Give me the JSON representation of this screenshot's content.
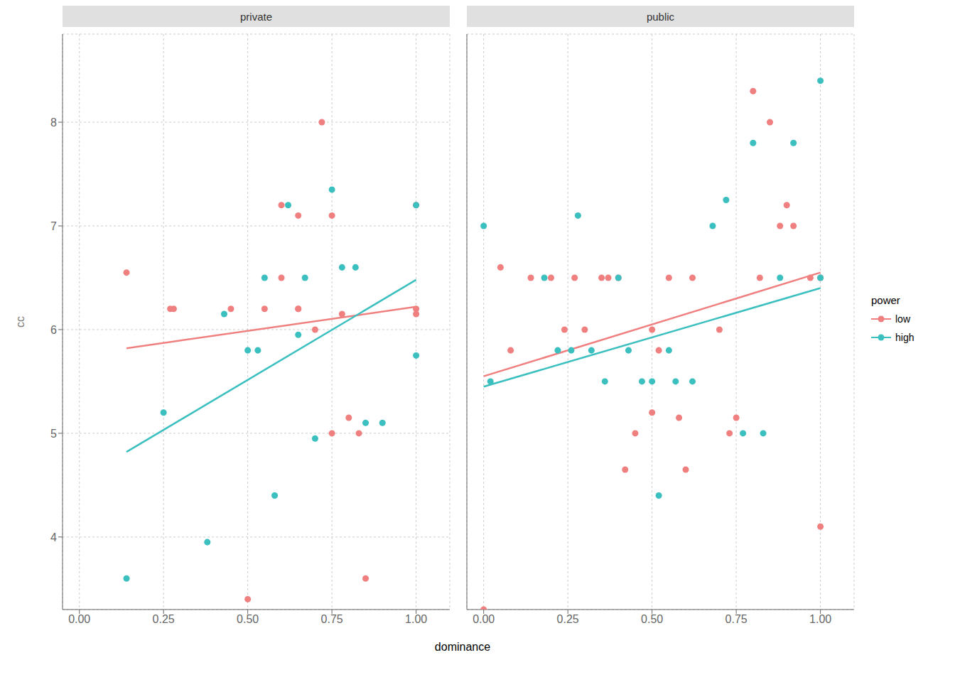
{
  "chart_data": [
    {
      "type": "scatter",
      "title": "private",
      "xlabel": "dominance",
      "ylabel": "cc",
      "xlim": [
        -0.05,
        1.1
      ],
      "ylim": [
        3.3,
        8.85
      ],
      "xticks": [
        {
          "value": 0.0,
          "label": "0.00"
        },
        {
          "value": 0.25,
          "label": "0.25"
        },
        {
          "value": 0.5,
          "label": "0.50"
        },
        {
          "value": 0.75,
          "label": "0.75"
        },
        {
          "value": 1.0,
          "label": "1.00"
        }
      ],
      "yticks": [
        4,
        5,
        6,
        7,
        8
      ],
      "grid": true,
      "series": [
        {
          "name": "low",
          "color": "#F08080",
          "x": [
            0.14,
            0.27,
            0.28,
            0.45,
            0.5,
            0.55,
            0.6,
            0.6,
            0.65,
            0.65,
            0.65,
            0.7,
            0.72,
            0.75,
            0.75,
            0.78,
            0.8,
            0.83,
            0.85,
            1.0,
            1.0,
            1.0
          ],
          "values": [
            6.55,
            6.2,
            6.2,
            6.2,
            3.4,
            6.2,
            7.2,
            6.5,
            6.2,
            6.2,
            7.1,
            6.0,
            8.0,
            7.1,
            5.0,
            6.15,
            5.15,
            5.0,
            3.6,
            7.2,
            6.2,
            6.15
          ],
          "fit": {
            "x": [
              0.14,
              1.0
            ],
            "values": [
              5.82,
              6.22
            ]
          }
        },
        {
          "name": "high",
          "color": "#3BBFBF",
          "x": [
            0.14,
            0.25,
            0.38,
            0.43,
            0.5,
            0.53,
            0.55,
            0.58,
            0.62,
            0.65,
            0.67,
            0.7,
            0.75,
            0.78,
            0.82,
            0.85,
            0.9,
            1.0,
            1.0
          ],
          "values": [
            3.6,
            5.2,
            3.95,
            6.15,
            5.8,
            5.8,
            6.5,
            4.4,
            7.2,
            5.95,
            6.5,
            4.95,
            7.35,
            6.6,
            6.6,
            5.1,
            5.1,
            7.2,
            5.75
          ],
          "fit": {
            "x": [
              0.14,
              1.0
            ],
            "values": [
              4.82,
              6.48
            ]
          }
        }
      ]
    },
    {
      "type": "scatter",
      "title": "public",
      "xlim": [
        -0.05,
        1.1
      ],
      "ylim": [
        3.3,
        8.85
      ],
      "xticks": [
        {
          "value": 0.0,
          "label": "0.00"
        },
        {
          "value": 0.25,
          "label": "0.25"
        },
        {
          "value": 0.5,
          "label": "0.50"
        },
        {
          "value": 0.75,
          "label": "0.75"
        },
        {
          "value": 1.0,
          "label": "1.00"
        }
      ],
      "yticks": [
        4,
        5,
        6,
        7,
        8
      ],
      "grid": true,
      "tick_labels": "x",
      "legend": "right",
      "legend_title": "power",
      "series": [
        {
          "name": "low",
          "color": "#F08080",
          "x": [
            0.0,
            0.05,
            0.08,
            0.14,
            0.2,
            0.24,
            0.27,
            0.3,
            0.35,
            0.37,
            0.4,
            0.42,
            0.45,
            0.5,
            0.5,
            0.52,
            0.55,
            0.58,
            0.6,
            0.62,
            0.7,
            0.73,
            0.75,
            0.8,
            0.82,
            0.85,
            0.88,
            0.9,
            0.92,
            0.97,
            1.0,
            1.0
          ],
          "values": [
            3.3,
            6.6,
            5.8,
            6.5,
            6.5,
            6.0,
            6.5,
            6.0,
            6.5,
            6.5,
            6.5,
            4.65,
            5.0,
            6.0,
            5.2,
            5.8,
            6.5,
            5.15,
            4.65,
            6.5,
            6.0,
            5.0,
            5.15,
            8.3,
            6.5,
            8.0,
            7.0,
            7.2,
            7.0,
            6.5,
            4.1,
            6.5
          ],
          "fit": {
            "x": [
              0.0,
              1.0
            ],
            "values": [
              5.55,
              6.55
            ]
          }
        },
        {
          "name": "high",
          "color": "#3BBFBF",
          "x": [
            0.0,
            0.02,
            0.18,
            0.22,
            0.26,
            0.28,
            0.32,
            0.36,
            0.4,
            0.43,
            0.47,
            0.5,
            0.52,
            0.55,
            0.57,
            0.62,
            0.68,
            0.72,
            0.77,
            0.8,
            0.83,
            0.88,
            0.92,
            1.0,
            1.0
          ],
          "values": [
            7.0,
            5.5,
            6.5,
            5.8,
            5.8,
            7.1,
            5.8,
            5.5,
            6.5,
            5.8,
            5.5,
            5.5,
            4.4,
            5.8,
            5.5,
            5.5,
            7.0,
            7.25,
            5.0,
            7.8,
            5.0,
            6.5,
            7.8,
            6.5,
            8.4
          ],
          "fit": {
            "x": [
              0.0,
              1.0
            ],
            "values": [
              5.45,
              6.4
            ]
          }
        }
      ]
    }
  ]
}
